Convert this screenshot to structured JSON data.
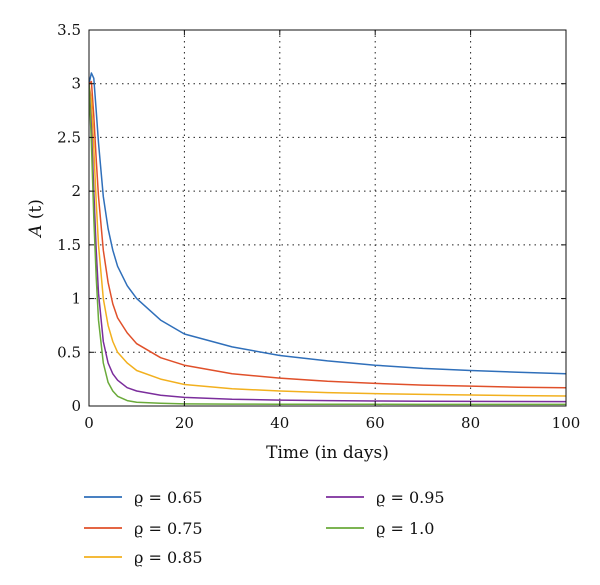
{
  "chart_data": {
    "type": "line",
    "title": "",
    "xlabel": "Time (in days)",
    "ylabel_main": "A",
    "ylabel_arg": "(t)",
    "xlim": [
      0,
      100
    ],
    "ylim": [
      0,
      3.5
    ],
    "xticks": [
      0,
      20,
      40,
      60,
      80,
      100
    ],
    "yticks": [
      0,
      0.5,
      1,
      1.5,
      2,
      2.5,
      3,
      3.5
    ],
    "ytick_labels": [
      "0",
      "0.5",
      "1",
      "1.5",
      "2",
      "2.5",
      "3",
      "3.5"
    ],
    "grid": true,
    "legend_placement": "bottom",
    "series": [
      {
        "name": "ϱ = 0.65",
        "color": "#2f6fba",
        "x": [
          0,
          0.5,
          1,
          1.5,
          2,
          3,
          4,
          5,
          6,
          8,
          10,
          15,
          20,
          30,
          40,
          50,
          60,
          70,
          80,
          90,
          100
        ],
        "y": [
          3.0,
          3.1,
          3.05,
          2.75,
          2.45,
          1.95,
          1.65,
          1.45,
          1.3,
          1.12,
          1.0,
          0.8,
          0.67,
          0.55,
          0.47,
          0.42,
          0.38,
          0.35,
          0.33,
          0.315,
          0.3
        ]
      },
      {
        "name": "ϱ = 0.75",
        "color": "#e0502a",
        "x": [
          0,
          0.5,
          1,
          1.5,
          2,
          3,
          4,
          5,
          6,
          8,
          10,
          15,
          20,
          30,
          40,
          50,
          60,
          70,
          80,
          90,
          100
        ],
        "y": [
          3.0,
          3.02,
          2.7,
          2.3,
          1.95,
          1.45,
          1.15,
          0.95,
          0.82,
          0.68,
          0.58,
          0.45,
          0.38,
          0.3,
          0.26,
          0.23,
          0.21,
          0.195,
          0.185,
          0.175,
          0.17
        ]
      },
      {
        "name": "ϱ = 0.85",
        "color": "#f2b01e",
        "x": [
          0,
          0.5,
          1,
          1.5,
          2,
          3,
          4,
          5,
          6,
          8,
          10,
          15,
          20,
          30,
          40,
          50,
          60,
          70,
          80,
          90,
          100
        ],
        "y": [
          3.0,
          2.85,
          2.4,
          1.9,
          1.5,
          1.0,
          0.75,
          0.6,
          0.5,
          0.4,
          0.33,
          0.25,
          0.2,
          0.16,
          0.14,
          0.125,
          0.115,
          0.108,
          0.102,
          0.097,
          0.093
        ]
      },
      {
        "name": "ϱ = 0.95",
        "color": "#7b2d9c",
        "x": [
          0,
          0.5,
          1,
          1.5,
          2,
          3,
          4,
          5,
          6,
          8,
          10,
          15,
          20,
          30,
          40,
          50,
          60,
          70,
          80,
          90,
          100
        ],
        "y": [
          3.0,
          2.6,
          2.0,
          1.45,
          1.05,
          0.6,
          0.4,
          0.3,
          0.24,
          0.17,
          0.14,
          0.1,
          0.08,
          0.062,
          0.055,
          0.05,
          0.047,
          0.045,
          0.043,
          0.042,
          0.041
        ]
      },
      {
        "name": "ϱ = 1.0",
        "color": "#6aaa3a",
        "x": [
          0,
          0.5,
          1,
          1.5,
          2,
          3,
          4,
          5,
          6,
          8,
          10,
          15,
          20,
          30,
          40,
          50,
          60,
          70,
          80,
          90,
          100
        ],
        "y": [
          3.0,
          2.45,
          1.75,
          1.2,
          0.8,
          0.4,
          0.22,
          0.14,
          0.09,
          0.05,
          0.035,
          0.025,
          0.02,
          0.018,
          0.017,
          0.016,
          0.016,
          0.015,
          0.015,
          0.015,
          0.015
        ]
      }
    ]
  }
}
